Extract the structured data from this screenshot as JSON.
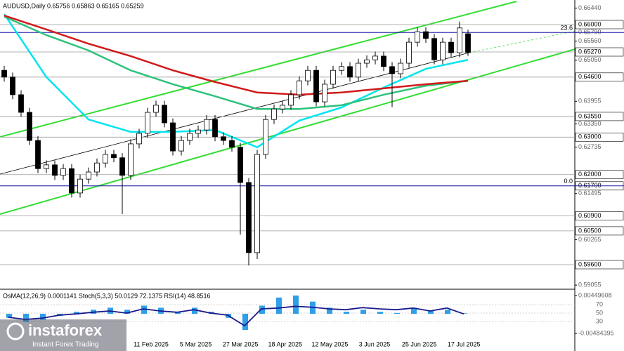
{
  "chart_data": {
    "type": "candlestick",
    "title": "AUDUSD,Daily  0.65756 0.65863 0.65165 0.65259",
    "ylim": [
      0.58945,
      0.66655
    ],
    "yticks": [
      {
        "value": 0.6644,
        "label": "0.66440"
      },
      {
        "value": 0.6579,
        "label": "0.65790"
      },
      {
        "value": 0.6556,
        "label": "0.65560"
      },
      {
        "value": 0.6505,
        "label": "0.65050"
      },
      {
        "value": 0.63955,
        "label": "0.63955"
      },
      {
        "value": 0.6335,
        "label": "0.63350"
      },
      {
        "value": 0.62735,
        "label": "0.62735"
      },
      {
        "value": 0.61495,
        "label": "0.61495"
      },
      {
        "value": 0.60265,
        "label": "0.60265"
      },
      {
        "value": 0.59055,
        "label": "0.59055"
      }
    ],
    "levels": [
      {
        "value": 0.66,
        "label": "0.66000"
      },
      {
        "value": 0.6527,
        "label": "0.65270"
      },
      {
        "value": 0.646,
        "label": "0.64600"
      },
      {
        "value": 0.6355,
        "label": "0.63550"
      },
      {
        "value": 0.63,
        "label": "0.63000"
      },
      {
        "value": 0.62,
        "label": "0.62000"
      },
      {
        "value": 0.617,
        "label": "0.61700"
      },
      {
        "value": 0.609,
        "label": "0.60900"
      },
      {
        "value": 0.605,
        "label": "0.60500"
      },
      {
        "value": 0.596,
        "label": "0.59600"
      }
    ],
    "fib": [
      {
        "value": 0.6579,
        "label": "23.6"
      },
      {
        "value": 0.617,
        "label": "0.0"
      }
    ],
    "xtick_labels": [
      "11 Feb 2025",
      "5 Mar 2025",
      "27 Mar 2025",
      "18 Apr 2025",
      "12 May 2025",
      "3 Jun 2025",
      "25 Jun 2025",
      "17 Jul 2025"
    ],
    "open": [
      0.6478,
      0.646,
      0.6413,
      0.6366,
      0.6291,
      0.6216,
      0.6226,
      0.6198,
      0.6216,
      0.6151,
      0.6188,
      0.6207,
      0.6231,
      0.6254,
      0.6245,
      0.6198,
      0.6282,
      0.631,
      0.6366,
      0.6385,
      0.6338,
      0.6263,
      0.6291,
      0.631,
      0.6319,
      0.6347,
      0.6301,
      0.6291,
      0.6273,
      0.6179,
      0.5992,
      0.6254,
      0.6347,
      0.6375,
      0.6385,
      0.6413,
      0.645,
      0.6478,
      0.6394,
      0.6441,
      0.6478,
      0.6488,
      0.646,
      0.6497,
      0.6506,
      0.6516,
      0.6488,
      0.6469,
      0.6497,
      0.6553,
      0.6581,
      0.6563,
      0.6506,
      0.6553,
      0.6525,
      0.65756
    ],
    "high": [
      0.649,
      0.6472,
      0.6425,
      0.6378,
      0.6303,
      0.6238,
      0.6238,
      0.6228,
      0.6228,
      0.62,
      0.6219,
      0.6243,
      0.6266,
      0.6266,
      0.6257,
      0.6294,
      0.6322,
      0.6378,
      0.6397,
      0.6397,
      0.635,
      0.6303,
      0.6322,
      0.6331,
      0.6359,
      0.6359,
      0.6313,
      0.6303,
      0.6285,
      0.6191,
      0.6266,
      0.6359,
      0.6387,
      0.6397,
      0.6425,
      0.6462,
      0.649,
      0.649,
      0.6453,
      0.649,
      0.65,
      0.65,
      0.6509,
      0.6518,
      0.6528,
      0.6528,
      0.65,
      0.6509,
      0.6565,
      0.6593,
      0.6593,
      0.6575,
      0.6565,
      0.6565,
      0.6608,
      0.65863
    ],
    "low": [
      0.6448,
      0.6401,
      0.6354,
      0.6279,
      0.6204,
      0.6204,
      0.6186,
      0.6186,
      0.6139,
      0.6139,
      0.6176,
      0.6195,
      0.6219,
      0.6233,
      0.6095,
      0.6186,
      0.627,
      0.6298,
      0.6354,
      0.6326,
      0.6251,
      0.6251,
      0.6279,
      0.6298,
      0.6307,
      0.6289,
      0.6279,
      0.6261,
      0.604,
      0.5958,
      0.5975,
      0.6242,
      0.6335,
      0.6363,
      0.6373,
      0.6401,
      0.6438,
      0.6382,
      0.6382,
      0.6429,
      0.6466,
      0.6448,
      0.6448,
      0.6485,
      0.6494,
      0.6476,
      0.638,
      0.6457,
      0.6485,
      0.6541,
      0.6551,
      0.6494,
      0.6494,
      0.6513,
      0.6513,
      0.65165
    ],
    "close": [
      0.646,
      0.6413,
      0.6366,
      0.6291,
      0.6216,
      0.6226,
      0.6198,
      0.6216,
      0.6151,
      0.6188,
      0.6207,
      0.6231,
      0.6254,
      0.6245,
      0.6198,
      0.6282,
      0.631,
      0.6366,
      0.6385,
      0.6338,
      0.6263,
      0.6291,
      0.631,
      0.6319,
      0.6347,
      0.6301,
      0.6291,
      0.6273,
      0.6179,
      0.5992,
      0.6254,
      0.6347,
      0.6375,
      0.6385,
      0.6413,
      0.645,
      0.6478,
      0.6394,
      0.6441,
      0.6478,
      0.6488,
      0.646,
      0.6497,
      0.6506,
      0.6516,
      0.6488,
      0.6469,
      0.6497,
      0.6553,
      0.6581,
      0.6563,
      0.6506,
      0.6553,
      0.6525,
      0.6591,
      0.65259
    ],
    "ma": [
      {
        "color": "#00e5ee",
        "x": [
          0,
          5,
          10,
          15,
          20,
          25,
          30,
          35,
          40,
          45,
          50,
          55
        ],
        "values": [
          0.6628,
          0.646,
          0.6347,
          0.6314,
          0.6314,
          0.6319,
          0.6273,
          0.6344,
          0.6379,
          0.6432,
          0.6482,
          0.6506
        ]
      },
      {
        "color": "#2ec27e",
        "x": [
          0,
          5,
          10,
          15,
          20,
          25,
          30,
          35,
          40,
          45,
          50,
          55
        ],
        "values": [
          0.6621,
          0.6572,
          0.6531,
          0.6478,
          0.6441,
          0.6409,
          0.6375,
          0.6375,
          0.6385,
          0.6413,
          0.6437,
          0.645
        ]
      },
      {
        "color": "#d11a1a",
        "x": [
          0,
          5,
          10,
          15,
          20,
          25,
          30,
          35,
          40,
          45,
          50,
          55
        ],
        "values": [
          0.6624,
          0.6587,
          0.6549,
          0.6516,
          0.6478,
          0.6447,
          0.6419,
          0.6413,
          0.6419,
          0.643,
          0.6441,
          0.645
        ]
      }
    ],
    "indicator": {
      "title": "OsMA(12,26,9) 0.0001141  Stoch(5,3,3) 50.0129 72.1375  RSI(14) 48.8516",
      "osma_lim": [
        -0.00484395,
        0.00449608
      ],
      "osma_ticks": [
        0.00449608,
        -0.00484395
      ],
      "osma": [
        -0.001,
        -0.002,
        -0.0015,
        -0.0005,
        0.0005,
        0.001,
        0.0015,
        0.001,
        0.002,
        0.0015,
        0.0005,
        0.0015,
        0.0005,
        -0.001,
        -0.004,
        0.002,
        0.004,
        0.0045,
        0.003,
        0.0015,
        0.0005,
        0.001,
        0.0005,
        0.0002,
        0.0015,
        0.0008,
        0.001,
        0.0001141
      ],
      "rsi_lim": [
        0,
        100
      ],
      "rsi_ticks": [
        70,
        50,
        30
      ],
      "rsi": [
        40,
        35,
        38,
        45,
        48,
        52,
        55,
        50,
        60,
        55,
        52,
        58,
        50,
        45,
        20,
        60,
        62,
        66,
        64,
        60,
        58,
        63,
        60,
        58,
        62,
        55,
        62,
        48
      ]
    },
    "watermark": "instaforex",
    "watermark_tagline": "Instant Forex Trading"
  }
}
